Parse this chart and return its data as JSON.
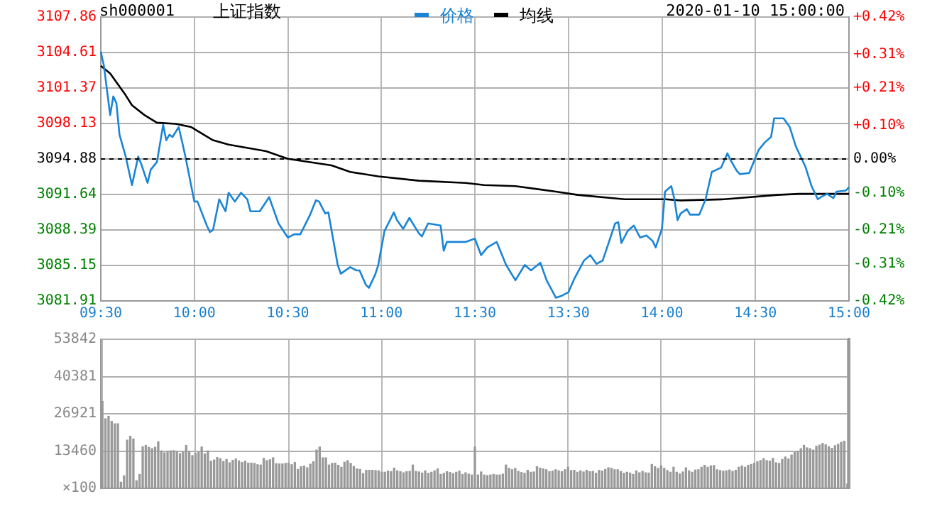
{
  "chart_data": [
    {
      "type": "line",
      "title": "上证指数",
      "subtitle": "sh000001",
      "annotations": [
        "2020-01-10 15:00:00"
      ],
      "legend": "top",
      "grid": true,
      "marker": "none",
      "line_style": "solid",
      "categories": [
        "09:30",
        null,
        null,
        null,
        null,
        null,
        null,
        null,
        null,
        null,
        null,
        null,
        null,
        null,
        null,
        null,
        null,
        null,
        null,
        null,
        null,
        null,
        null,
        null,
        null,
        null,
        null,
        null,
        null,
        null,
        "10:00",
        null,
        null,
        null,
        null,
        null,
        null,
        null,
        null,
        null,
        null,
        null,
        null,
        null,
        null,
        null,
        null,
        null,
        null,
        null,
        null,
        null,
        null,
        null,
        null,
        null,
        null,
        null,
        null,
        null,
        "10:30",
        null,
        null,
        null,
        null,
        null,
        null,
        null,
        null,
        null,
        null,
        null,
        null,
        null,
        null,
        null,
        null,
        null,
        null,
        null,
        null,
        null,
        null,
        null,
        null,
        null,
        null,
        null,
        null,
        null,
        "11:00",
        null,
        null,
        null,
        null,
        null,
        null,
        null,
        null,
        null,
        null,
        null,
        null,
        null,
        null,
        null,
        null,
        null,
        null,
        null,
        null,
        null,
        null,
        null,
        null,
        null,
        null,
        null,
        null,
        null,
        "11:30",
        null,
        null,
        null,
        null,
        null,
        null,
        null,
        null,
        null,
        null,
        null,
        null,
        null,
        null,
        null,
        null,
        null,
        null,
        null,
        null,
        null,
        null,
        null,
        null,
        null,
        null,
        null,
        null,
        null,
        "13:30",
        null,
        null,
        null,
        null,
        null,
        null,
        null,
        null,
        null,
        null,
        null,
        null,
        null,
        null,
        null,
        null,
        null,
        null,
        null,
        null,
        null,
        null,
        null,
        null,
        null,
        null,
        null,
        null,
        null,
        "14:00",
        null,
        null,
        null,
        null,
        null,
        null,
        null,
        null,
        null,
        null,
        null,
        null,
        null,
        null,
        null,
        null,
        null,
        null,
        null,
        null,
        null,
        null,
        null,
        null,
        null,
        null,
        null,
        null,
        null,
        "14:30",
        null,
        null,
        null,
        null,
        null,
        null,
        null,
        null,
        null,
        null,
        null,
        null,
        null,
        null,
        null,
        null,
        null,
        null,
        null,
        null,
        null,
        null,
        null,
        null,
        null,
        null,
        null,
        null,
        null,
        "15:00"
      ],
      "ylim": [
        3081.91,
        3107.86
      ],
      "yticks": [
        3081.91,
        3085.15,
        3088.39,
        3091.64,
        3094.88,
        3098.13,
        3101.37,
        3104.61,
        3107.86
      ],
      "y2lim": [
        -0.42,
        0.42
      ],
      "y2ticks": [
        {
          "value": -0.42,
          "label": "-0.42%"
        },
        {
          "value": -0.31,
          "label": "-0.31%"
        },
        {
          "value": -0.21,
          "label": "-0.21%"
        },
        {
          "value": -0.1,
          "label": "-0.10%"
        },
        {
          "value": 0,
          "label": "0.00%"
        },
        {
          "value": 0.1,
          "label": "+0.10%"
        },
        {
          "value": 0.21,
          "label": "+0.21%"
        },
        {
          "value": 0.31,
          "label": "+0.31%"
        },
        {
          "value": 0.42,
          "label": "+0.42%"
        }
      ],
      "ref_lines": [
        {
          "axis": "y",
          "value": 3094.88,
          "color": "#000000",
          "line_style": "dashed"
        }
      ],
      "series": [
        {
          "name": "价格",
          "color": "#1a85d6",
          "values": [
            3104.7,
            3103.4,
            null,
            3098.9,
            3100.6,
            3100.0,
            3097.1,
            null,
            3095.1,
            null,
            3092.5,
            null,
            3095.1,
            3094.4,
            null,
            3092.7,
            3093.9,
            null,
            3094.6,
            null,
            3098.0,
            3096.6,
            3097.1,
            3096.9,
            null,
            3097.8,
            null,
            3095.3,
            null,
            null,
            3091.0,
            3091.0,
            null,
            null,
            3088.8,
            3088.2,
            3088.4,
            null,
            3091.2,
            null,
            3090.1,
            3091.8,
            null,
            3091.0,
            null,
            3091.8,
            null,
            3091.2,
            3090.1,
            null,
            null,
            3090.1,
            null,
            null,
            3091.4,
            null,
            null,
            3089.0,
            null,
            null,
            3087.7,
            null,
            3088.0,
            null,
            3088.0,
            null,
            null,
            3089.7,
            null,
            3091.1,
            3091.0,
            null,
            3089.9,
            3090.0,
            null,
            null,
            3085.2,
            3084.4,
            null,
            null,
            3085.0,
            null,
            3084.7,
            3084.7,
            null,
            3083.4,
            3083.1,
            null,
            3084.3,
            3085.2,
            null,
            3088.3,
            null,
            null,
            3090.0,
            3089.3,
            null,
            3088.5,
            null,
            3089.5,
            null,
            null,
            3088.1,
            3087.8,
            null,
            3089.0,
            null,
            3088.9,
            null,
            3088.8,
            3086.5,
            3087.3,
            null,
            null,
            null,
            null,
            null,
            3087.3,
            null,
            null,
            3087.6,
            null,
            3086.1,
            null,
            3086.8,
            null,
            null,
            3087.3,
            null,
            null,
            3085.2,
            null,
            null,
            3083.8,
            null,
            null,
            3085.2,
            null,
            3084.7,
            null,
            null,
            3085.4,
            null,
            3083.8,
            null,
            null,
            3082.2,
            null,
            3082.4,
            null,
            3082.7,
            null,
            3084.0,
            null,
            null,
            3085.6,
            null,
            3086.1,
            null,
            3085.3,
            null,
            3085.6,
            null,
            null,
            null,
            3089.0,
            3089.1,
            3087.2,
            null,
            3088.3,
            null,
            3088.8,
            null,
            3087.7,
            null,
            3087.9,
            null,
            3087.4,
            3086.8,
            null,
            3088.5,
            3091.9,
            null,
            3092.4,
            3091.2,
            3089.3,
            3089.9,
            null,
            3090.3,
            3089.8,
            null,
            null,
            3089.8,
            null,
            3091.2,
            null,
            3093.7,
            null,
            null,
            3094.1,
            null,
            3095.4,
            3094.8,
            null,
            3093.8,
            3093.5,
            null,
            null,
            3093.6,
            null,
            null,
            3095.7,
            null,
            3096.4,
            null,
            3096.9,
            3098.6,
            null,
            null,
            3098.6,
            null,
            3097.8,
            null,
            3096.0,
            null,
            null,
            3094.2,
            null,
            3092.4,
            null,
            3091.2,
            3091.4,
            null,
            3091.7,
            null,
            3091.3,
            3091.9,
            null,
            null,
            3092.0,
            3092.3
          ]
        },
        {
          "name": "均线",
          "color": "#000000",
          "values": [
            3103.4,
            null,
            null,
            3102.7,
            null,
            3101.9,
            null,
            null,
            3100.7,
            null,
            3099.8,
            null,
            null,
            null,
            3098.9,
            null,
            null,
            null,
            3098.2,
            null,
            null,
            null,
            null,
            null,
            3098.1,
            null,
            null,
            null,
            null,
            3097.8,
            null,
            null,
            null,
            null,
            null,
            null,
            3096.6,
            null,
            null,
            null,
            null,
            3096.2,
            null,
            null,
            null,
            null,
            null,
            null,
            null,
            null,
            null,
            null,
            null,
            3095.6,
            null,
            null,
            null,
            null,
            null,
            null,
            3094.9,
            null,
            null,
            null,
            null,
            null,
            null,
            null,
            null,
            null,
            null,
            null,
            null,
            null,
            3094.3,
            null,
            null,
            null,
            null,
            null,
            3093.7,
            null,
            null,
            null,
            null,
            null,
            null,
            null,
            null,
            3093.3,
            null,
            null,
            null,
            null,
            null,
            null,
            null,
            null,
            null,
            null,
            null,
            null,
            3092.9,
            null,
            null,
            null,
            null,
            null,
            null,
            null,
            null,
            null,
            null,
            null,
            null,
            null,
            null,
            3092.7,
            null,
            null,
            null,
            null,
            null,
            3092.5,
            null,
            null,
            null,
            null,
            null,
            null,
            null,
            null,
            null,
            3092.4,
            null,
            null,
            null,
            null,
            null,
            null,
            null,
            null,
            null,
            null,
            null,
            null,
            3091.9,
            null,
            null,
            null,
            null,
            null,
            null,
            3091.6,
            null,
            null,
            null,
            null,
            null,
            null,
            null,
            null,
            null,
            null,
            null,
            null,
            null,
            null,
            3091.2,
            null,
            null,
            null,
            null,
            null,
            null,
            null,
            null,
            null,
            null,
            null,
            null,
            3091.2,
            null,
            null,
            null,
            null,
            3091.1,
            null,
            null,
            null,
            null,
            null,
            null,
            null,
            null,
            null,
            null,
            null,
            null,
            null,
            3091.2,
            null,
            null,
            null,
            null,
            null,
            null,
            null,
            null,
            null,
            null,
            null,
            null,
            null,
            null,
            null,
            null,
            3091.6,
            null,
            null,
            null,
            null,
            null,
            null,
            3091.7,
            null,
            null,
            null,
            null,
            null,
            null,
            null,
            null,
            null,
            null,
            null,
            null,
            null,
            null,
            null,
            3091.7
          ]
        }
      ]
    },
    {
      "type": "bar",
      "grid": true,
      "tick_labels": "y",
      "color": "#999999",
      "ylabel": "×100",
      "categories": [
        null,
        null,
        null,
        null,
        null,
        null,
        null,
        null,
        null,
        null,
        null,
        null,
        null,
        null,
        null,
        null,
        null,
        null,
        null,
        null,
        null,
        null,
        null,
        null,
        null,
        null,
        null,
        null,
        null,
        null,
        null,
        null,
        null,
        null,
        null,
        null,
        null,
        null,
        null,
        null,
        null,
        null,
        null,
        null,
        null,
        null,
        null,
        null,
        null,
        null,
        null,
        null,
        null,
        null,
        null,
        null,
        null,
        null,
        null,
        null,
        null,
        null,
        null,
        null,
        null,
        null,
        null,
        null,
        null,
        null,
        null,
        null,
        null,
        null,
        null,
        null,
        null,
        null,
        null,
        null,
        null,
        null,
        null,
        null,
        null,
        null,
        null,
        null,
        null,
        null,
        null,
        null,
        null,
        null,
        null,
        null,
        null,
        null,
        null,
        null,
        null,
        null,
        null,
        null,
        null,
        null,
        null,
        null,
        null,
        null,
        null,
        null,
        null,
        null,
        null,
        null,
        null,
        null,
        null,
        null,
        null,
        null,
        null,
        null,
        null,
        null,
        null,
        null,
        null,
        null,
        null,
        null,
        null,
        null,
        null,
        null,
        null,
        null,
        null,
        null,
        null,
        null,
        null,
        null,
        null,
        null,
        null,
        null,
        null,
        null,
        null,
        null,
        null,
        null,
        null,
        null,
        null,
        null,
        null,
        null,
        null,
        null,
        null,
        null,
        null,
        null,
        null,
        null,
        null,
        null,
        null,
        null,
        null,
        null,
        null,
        null,
        null,
        null,
        null,
        null,
        null,
        null,
        null,
        null,
        null,
        null,
        null,
        null,
        null,
        null,
        null,
        null,
        null,
        null,
        null,
        null,
        null,
        null,
        null,
        null,
        null,
        null,
        null,
        null,
        null,
        null,
        null,
        null,
        null,
        null,
        null,
        null,
        null,
        null,
        null,
        null,
        null,
        null,
        null,
        null,
        null,
        null,
        null,
        null,
        null,
        null,
        null,
        null,
        null,
        null,
        null,
        null,
        null,
        null,
        null,
        null,
        null,
        null,
        null,
        null,
        null
      ],
      "ylim": [
        0,
        53842
      ],
      "yticks": [
        13460,
        26921,
        40381,
        53842
      ],
      "values": [
        31400,
        25100,
        26000,
        24200,
        23300,
        23300,
        2200,
        4500,
        17400,
        18800,
        17800,
        2700,
        5000,
        15000,
        15500,
        14800,
        14300,
        14800,
        16800,
        13500,
        12800,
        13200,
        13500,
        13600,
        13300,
        12500,
        13000,
        15500,
        13300,
        11800,
        12600,
        13000,
        14900,
        12400,
        13500,
        9800,
        10200,
        11100,
        10700,
        9700,
        10400,
        9200,
        10100,
        10600,
        9900,
        9300,
        9800,
        9100,
        9100,
        9000,
        8500,
        8400,
        10800,
        10000,
        10300,
        11000,
        8900,
        8800,
        8800,
        9000,
        9100,
        8500,
        9300,
        6800,
        7800,
        8000,
        7400,
        8700,
        9600,
        13800,
        14900,
        11000,
        11000,
        8400,
        9000,
        9100,
        8300,
        7600,
        9400,
        10000,
        9000,
        7900,
        7000,
        6800,
        5300,
        6500,
        6500,
        6500,
        6400,
        6300,
        5800,
        5800,
        6200,
        6000,
        7300,
        6300,
        6000,
        5600,
        6000,
        6100,
        8400,
        6100,
        5900,
        5500,
        6300,
        5400,
        5800,
        6300,
        7000,
        5000,
        5400,
        6000,
        5700,
        5300,
        5800,
        6200,
        5000,
        5600,
        5100,
        4800,
        14900,
        4800,
        5900,
        4800,
        4600,
        4800,
        5000,
        4800,
        4800,
        5100,
        8400,
        7200,
        6700,
        7200,
        6100,
        5700,
        5400,
        6500,
        5800,
        5900,
        7800,
        7300,
        7000,
        6700,
        6000,
        6200,
        6700,
        6300,
        6000,
        6700,
        7600,
        6400,
        6500,
        5800,
        6300,
        5900,
        6500,
        6000,
        6100,
        5400,
        6500,
        6200,
        6800,
        7400,
        7200,
        6700,
        6700,
        6100,
        5400,
        5800,
        5500,
        5000,
        6300,
        5600,
        6100,
        5600,
        5500,
        8600,
        7800,
        7200,
        8100,
        7200,
        6400,
        5800,
        7600,
        5800,
        5200,
        5900,
        7400,
        6300,
        5800,
        6600,
        6700,
        7600,
        8300,
        7600,
        8100,
        8200,
        6700,
        6400,
        6200,
        6300,
        6600,
        6100,
        6500,
        7600,
        8100,
        7600,
        8300,
        8600,
        9000,
        9600,
        10000,
        10700,
        10000,
        9800,
        10800,
        9200,
        9000,
        10400,
        11300,
        10600,
        12000,
        12900,
        13400,
        14300,
        15500,
        14600,
        14300,
        13800,
        15200,
        15600,
        16200,
        15700,
        15000,
        14400,
        15400,
        15900,
        16600,
        17000,
        1500
      ]
    }
  ]
}
